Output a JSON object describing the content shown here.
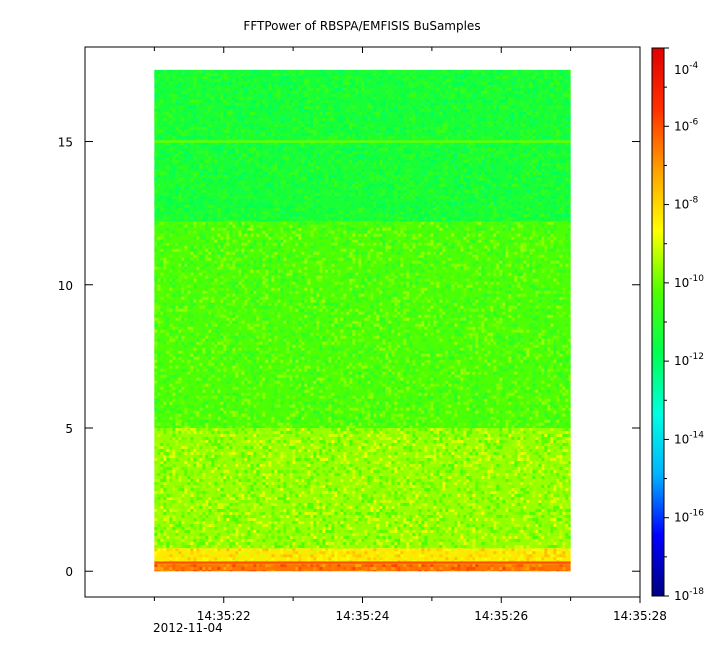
{
  "chart_data": {
    "type": "heatmap",
    "title": "FFTPower of RBSPA/EMFISIS  BuSamples",
    "xlabel": "",
    "ylabel": "",
    "x_tick_labels": [
      "14:35:22",
      "14:35:24",
      "14:35:26",
      "14:35:28"
    ],
    "x_date_label": "2012-11-04",
    "x_range_seconds": [
      20.0,
      28.0
    ],
    "x_major_ticks_seconds": [
      22,
      24,
      26,
      28
    ],
    "x_minor_ticks_seconds": [
      21,
      23,
      25,
      27
    ],
    "data_x_range_seconds": [
      21.0,
      27.0
    ],
    "y_ticks": [
      0,
      5,
      10,
      15
    ],
    "y_tick_labels": [
      "0",
      "5",
      "10",
      "15"
    ],
    "ylim": [
      -0.9,
      18.3
    ],
    "data_y_range": [
      0,
      17.5
    ],
    "colorbar": {
      "scale": "log",
      "range": [
        1e-18,
        0.0001
      ],
      "tick_base": "10",
      "tick_exponents": [
        "-4",
        "-6",
        "-8",
        "-10",
        "-12",
        "-14",
        "-16",
        "-18"
      ],
      "tick_values": [
        -4,
        -6,
        -8,
        -10,
        -12,
        -14,
        -16,
        -18
      ],
      "colormap": [
        "#000080",
        "#0000ff",
        "#00b4ff",
        "#00ffe0",
        "#00ff50",
        "#50ff00",
        "#ffff00",
        "#ffa000",
        "#ff3000",
        "#e00000"
      ]
    },
    "bands": [
      {
        "y_from": 0,
        "y_to": 0.25,
        "log_power": -6.5
      },
      {
        "y_from": 0.25,
        "y_to": 0.8,
        "log_power": -8.3
      },
      {
        "y_from": 0.8,
        "y_to": 5,
        "log_power": -9.6
      },
      {
        "y_from": 5,
        "y_to": 12.2,
        "log_power": -10.3
      },
      {
        "y_from": 12.2,
        "y_to": 17.5,
        "log_power": -11.3
      }
    ],
    "line_features": [
      {
        "y": 15.0,
        "log_power": -10.0
      },
      {
        "y": 0.3,
        "log_power": -6.0
      }
    ],
    "colors": {
      "frame": "#000000",
      "background": "#ffffff"
    }
  }
}
